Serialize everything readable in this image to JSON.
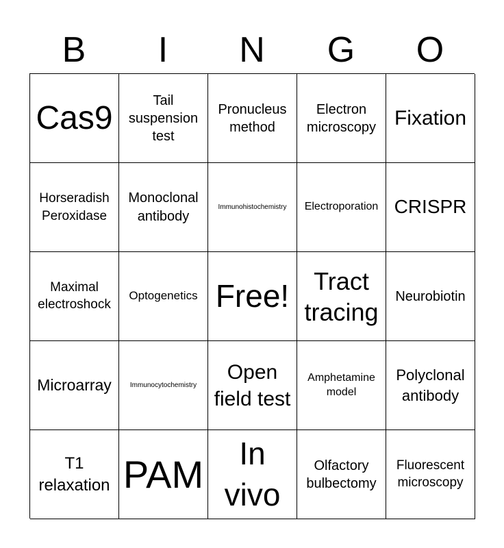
{
  "header": [
    "B",
    "I",
    "N",
    "G",
    "O"
  ],
  "cells": [
    "Cas9",
    "Tail suspension test",
    "Pronucleus method",
    "Electron microscopy",
    "Fixation",
    "Horseradish Peroxidase",
    "Monoclonal antibody",
    "Immunohistochemistry",
    "Electroporation",
    "CRISPR",
    "Maximal electroshock",
    "Optogenetics",
    "Free!",
    "Tract tracing",
    "Neurobiotin",
    "Microarray",
    "Immunocytochemistry",
    "Open field test",
    "Amphetamine model",
    "Polyclonal antibody",
    "T1 relaxation",
    "PAM",
    "In vivo",
    "Olfactory bulbectomy",
    "Fluorescent microscopy"
  ]
}
